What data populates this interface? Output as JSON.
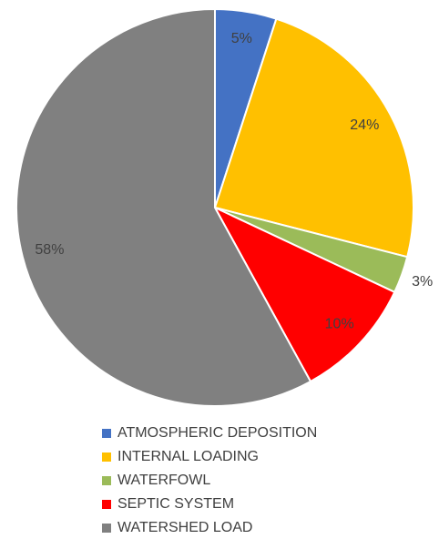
{
  "chart_data": {
    "type": "pie",
    "categories": [
      "ATMOSPHERIC DEPOSITION",
      "INTERNAL LOADING",
      "WATERFOWL",
      "SEPTIC SYSTEM",
      "WATERSHED LOAD"
    ],
    "values": [
      5,
      24,
      3,
      10,
      58
    ],
    "value_labels": [
      "5%",
      "24%",
      "3%",
      "10%",
      "58%"
    ],
    "colors": [
      "#4472c4",
      "#ffc000",
      "#9bbb59",
      "#ff0000",
      "#808080"
    ],
    "legend": "bottom"
  }
}
